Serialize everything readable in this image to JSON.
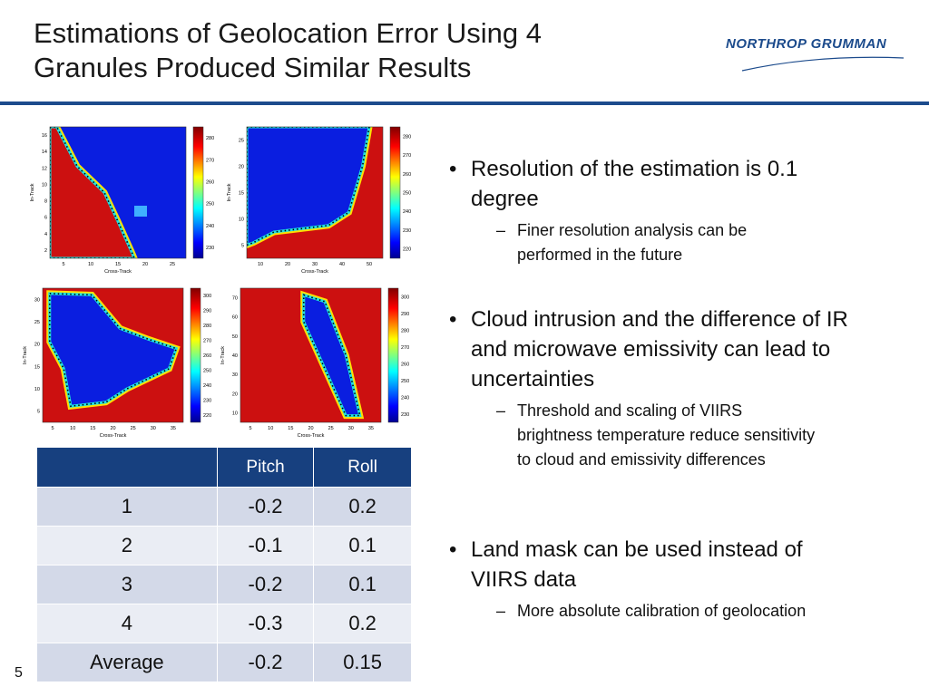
{
  "header": {
    "title_lines": [
      "Estimations of Geolocation Error Using 4",
      "Granules Produced Similar Results"
    ],
    "logo": "NORTHROP GRUMMAN"
  },
  "panels": [
    {
      "x_label": "Cross-Track",
      "y_label": "In-Track",
      "x_ticks": [
        5,
        10,
        15,
        20,
        25
      ],
      "y_ticks": [
        2,
        4,
        6,
        8,
        10,
        12,
        14,
        16
      ],
      "colorbar_ticks": [
        230,
        240,
        250,
        260,
        270,
        280
      ]
    },
    {
      "x_label": "Cross-Track",
      "y_label": "In-Track",
      "x_ticks": [
        10,
        20,
        30,
        40,
        50
      ],
      "y_ticks": [
        5,
        10,
        15,
        20,
        25
      ],
      "colorbar_ticks": [
        220,
        230,
        240,
        250,
        260,
        270,
        280
      ]
    },
    {
      "x_label": "Cross-Track",
      "y_label": "In-Track",
      "x_ticks": [
        5,
        10,
        15,
        20,
        25,
        30,
        35
      ],
      "y_ticks": [
        5,
        10,
        15,
        20,
        25,
        30
      ],
      "colorbar_ticks": [
        220,
        230,
        240,
        250,
        260,
        270,
        280,
        290,
        300
      ]
    },
    {
      "x_label": "Cross-Track",
      "y_label": "In-Track",
      "x_ticks": [
        5,
        10,
        15,
        20,
        25,
        30,
        35
      ],
      "y_ticks": [
        10,
        20,
        30,
        40,
        50,
        60,
        70
      ],
      "colorbar_ticks": [
        230,
        240,
        250,
        260,
        270,
        280,
        290,
        300
      ]
    }
  ],
  "table": {
    "columns": [
      "Pitch",
      "Roll"
    ],
    "rows": [
      [
        "1",
        "-0.2",
        "0.2"
      ],
      [
        "2",
        "-0.1",
        "0.1"
      ],
      [
        "3",
        "-0.2",
        "0.1"
      ],
      [
        "4",
        "-0.3",
        "0.2"
      ],
      [
        "Average",
        "-0.2",
        "0.15"
      ]
    ]
  },
  "bullets": [
    {
      "text": "Resolution of the estimation is 0.1 degree",
      "sub": [
        "Finer resolution analysis can be performed in the future"
      ]
    },
    {
      "text": "Cloud intrusion and the difference of IR and microwave emissivity can lead to uncertainties",
      "sub": [
        "Threshold and scaling of VIIRS brightness temperature reduce sensitivity to cloud and emissivity differences"
      ]
    },
    {
      "text": "Land mask can be used instead of VIIRS data",
      "sub": [
        "More absolute calibration of geolocation"
      ]
    }
  ],
  "page_number": "5"
}
